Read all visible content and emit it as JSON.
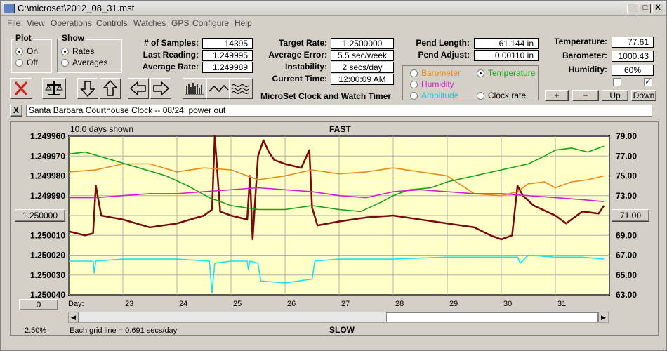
{
  "window": {
    "title": "C:\\microset\\2012_08_31.mst",
    "minimize": "_",
    "maximize": "□",
    "close": "X"
  },
  "menu": [
    "File",
    "View",
    "Operations",
    "Controls",
    "Watches",
    "GPS",
    "Configure",
    "Help"
  ],
  "plot_group": {
    "title": "Plot",
    "on": "On",
    "off": "Off",
    "selected": "On"
  },
  "show_group": {
    "title": "Show",
    "rates": "Rates",
    "averages": "Averages",
    "selected": "Rates"
  },
  "stats": {
    "samples_label": "# of Samples:",
    "samples": "14395",
    "last_reading_label": "Last Reading:",
    "last_reading": "1.249995",
    "average_rate_label": "Average Rate:",
    "average_rate": "1.249989",
    "target_rate_label": "Target Rate:",
    "target_rate": "1.2500000",
    "average_error_label": "Average Error:",
    "average_error": "5.5 sec/week",
    "instability_label": "Instability:",
    "instability": "2 secs/day",
    "current_time_label": "Current Time:",
    "current_time": "12:00:09 AM",
    "pend_length_label": "Pend Length:",
    "pend_length": "61.144 in",
    "pend_adjust_label": "Pend Adjust:",
    "pend_adjust": "0.00110 in",
    "temperature_label": "Temperature:",
    "temperature": "77.61",
    "barometer_label": "Barometer:",
    "barometer": "1000.43",
    "humidity_label": "Humidity:",
    "humidity": "60%"
  },
  "app_caption": "MicroSet Clock and Watch Timer",
  "series_select": {
    "barometer": "Barometer",
    "temperature": "Temperature",
    "humidity": "Humidity",
    "amplitude": "Amplitude",
    "clock_rate": "Clock rate",
    "selected": "Temperature"
  },
  "aux_buttons": {
    "plus": "+",
    "minus": "−",
    "up": "Up",
    "down": "Down"
  },
  "note": {
    "close": "X",
    "text": "Santa Barbara Courthouse Clock  --   08/24: power out"
  },
  "chart_data": {
    "type": "line",
    "days_shown": "10.0 days shown",
    "top_label": "FAST",
    "bottom_label": "SLOW",
    "x_axis_label": "Day:",
    "x_ticks": [
      "23",
      "24",
      "25",
      "26",
      "27",
      "28",
      "29",
      "30",
      "31"
    ],
    "xlim": [
      22.0,
      32.0
    ],
    "y_left_ticks": [
      "1.249960",
      "1.249970",
      "1.249980",
      "1.249990",
      "1.250000",
      "1.250010",
      "1.250020",
      "1.250030",
      "1.250040"
    ],
    "y_left_lim": [
      1.25004,
      1.24996
    ],
    "y_right_ticks": [
      "79.00",
      "77.00",
      "75.00",
      "73.00",
      "71.00",
      "69.00",
      "67.00",
      "65.00",
      "63.00"
    ],
    "y_right_lim": [
      63.0,
      79.0
    ],
    "center_left_button": "1.250000",
    "center_right_button": "71.00",
    "bottom_left_button": "0",
    "zoom_percent": "2.50%",
    "grid_note": "Each grid line = 0.691 secs/day",
    "series": [
      {
        "name": "Clock rate",
        "color": "#7a0a0a",
        "axis": "left",
        "x": [
          22.0,
          22.3,
          22.45,
          22.5,
          22.6,
          23.0,
          23.5,
          24.0,
          24.5,
          24.65,
          24.7,
          24.8,
          25.0,
          25.3,
          25.35,
          25.4,
          25.5,
          25.6,
          25.7,
          25.8,
          26.0,
          26.3,
          26.45,
          26.5,
          26.6,
          26.8,
          27.0,
          27.5,
          28.0,
          28.5,
          29.0,
          29.5,
          29.8,
          30.0,
          30.2,
          30.3,
          30.4,
          30.6,
          31.0,
          31.2,
          31.5,
          31.8,
          31.9
        ],
        "y": [
          1.250008,
          1.25001,
          1.250009,
          1.249985,
          1.25,
          1.250002,
          1.250006,
          1.250004,
          1.25,
          1.249997,
          1.24996,
          1.249998,
          1.25,
          1.250002,
          1.24998,
          1.250012,
          1.24997,
          1.249962,
          1.249968,
          1.249972,
          1.249974,
          1.249976,
          1.249967,
          1.249996,
          1.250005,
          1.250004,
          1.250003,
          1.250001,
          1.25,
          1.250002,
          1.250004,
          1.250006,
          1.25001,
          1.250012,
          1.25001,
          1.249985,
          1.24999,
          1.249995,
          1.25,
          1.250004,
          1.249998,
          1.249999,
          1.249995
        ]
      },
      {
        "name": "Barometer",
        "color": "#e88a1a",
        "axis": "left",
        "x": [
          22.0,
          22.5,
          23.0,
          23.5,
          24.0,
          24.5,
          25.0,
          25.5,
          26.0,
          26.5,
          27.0,
          27.5,
          28.0,
          28.5,
          29.0,
          29.5,
          30.0,
          30.3,
          30.5,
          30.8,
          31.0,
          31.3,
          31.6,
          31.9
        ],
        "y": [
          1.249978,
          1.249977,
          1.249974,
          1.249974,
          1.249978,
          1.249976,
          1.249977,
          1.249982,
          1.24998,
          1.249977,
          1.249979,
          1.249978,
          1.249976,
          1.249978,
          1.24998,
          1.249989,
          1.24999,
          1.249988,
          1.249984,
          1.249983,
          1.249986,
          1.249983,
          1.249982,
          1.24998
        ]
      },
      {
        "name": "Temperature",
        "color": "#1aa01a",
        "axis": "left",
        "x": [
          22.0,
          22.3,
          22.8,
          23.3,
          23.8,
          24.2,
          24.6,
          25.0,
          25.5,
          26.0,
          26.5,
          27.0,
          27.4,
          27.8,
          28.0,
          28.3,
          28.7,
          29.0,
          29.5,
          30.0,
          30.5,
          30.8,
          31.0,
          31.3,
          31.6,
          31.9
        ],
        "y": [
          1.249969,
          1.249968,
          1.249972,
          1.249976,
          1.24998,
          1.249985,
          1.249991,
          1.249995,
          1.249997,
          1.249997,
          1.249995,
          1.249997,
          1.249998,
          1.249993,
          1.24999,
          1.249987,
          1.249986,
          1.249983,
          1.24998,
          1.249977,
          1.249974,
          1.24997,
          1.249967,
          1.249966,
          1.249968,
          1.249965
        ]
      },
      {
        "name": "Humidity",
        "color": "#d020d0",
        "axis": "left",
        "x": [
          22.0,
          22.5,
          23.0,
          23.5,
          24.0,
          24.5,
          25.0,
          25.5,
          26.0,
          26.5,
          27.0,
          27.5,
          28.0,
          28.5,
          29.0,
          29.5,
          30.0,
          30.5,
          31.0,
          31.5,
          31.9
        ],
        "y": [
          1.249991,
          1.249991,
          1.24999,
          1.249989,
          1.249989,
          1.249988,
          1.249987,
          1.249986,
          1.249987,
          1.249988,
          1.24999,
          1.249991,
          1.249988,
          1.249987,
          1.249988,
          1.249989,
          1.249989,
          1.24999,
          1.249991,
          1.249992,
          1.249993
        ]
      },
      {
        "name": "Amplitude",
        "color": "#20e0f0",
        "axis": "left",
        "x": [
          22.0,
          22.45,
          22.47,
          22.5,
          23.0,
          24.0,
          24.6,
          24.65,
          24.7,
          25.0,
          25.3,
          25.32,
          25.35,
          25.5,
          25.55,
          26.0,
          26.5,
          26.55,
          27.0,
          28.0,
          29.0,
          30.0,
          30.3,
          30.35,
          30.5,
          31.0,
          31.5,
          31.9
        ],
        "y": [
          1.250023,
          1.250023,
          1.250029,
          1.250023,
          1.250022,
          1.250022,
          1.250023,
          1.250039,
          1.250024,
          1.250023,
          1.250023,
          1.250027,
          1.250023,
          1.250024,
          1.250033,
          1.250034,
          1.250032,
          1.250023,
          1.250022,
          1.250022,
          1.250021,
          1.250021,
          1.250021,
          1.250024,
          1.25002,
          1.250021,
          1.250021,
          1.250022
        ]
      }
    ]
  }
}
